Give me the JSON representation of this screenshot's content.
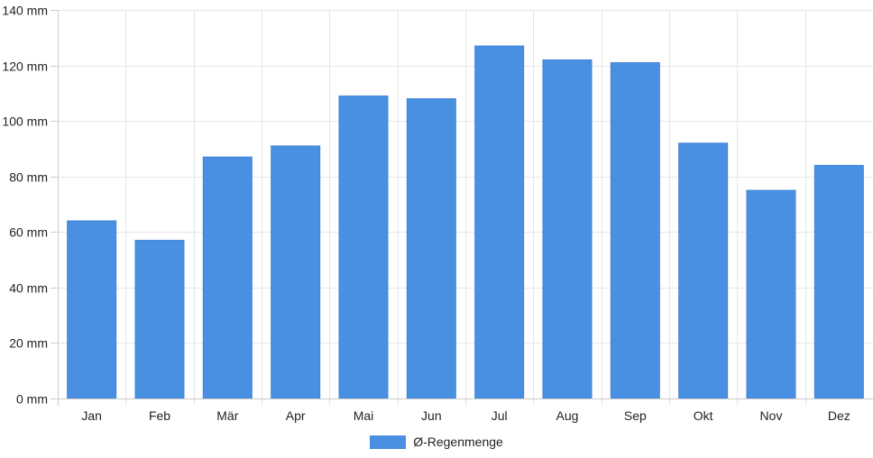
{
  "chart_data": {
    "type": "bar",
    "categories": [
      "Jan",
      "Feb",
      "Mär",
      "Apr",
      "Mai",
      "Jun",
      "Jul",
      "Aug",
      "Sep",
      "Okt",
      "Nov",
      "Dez"
    ],
    "series": [
      {
        "name": "Ø-Regenmenge",
        "values": [
          64,
          57,
          87,
          91,
          109,
          108,
          127,
          122,
          121,
          92,
          75,
          84
        ],
        "color": "#4a90e2"
      }
    ],
    "ylim": [
      0,
      140
    ],
    "yticks": [
      0,
      20,
      40,
      60,
      80,
      100,
      120,
      140
    ],
    "y_unit": "mm",
    "ytick_labels": [
      "0 mm",
      "20 mm",
      "40 mm",
      "60 mm",
      "80 mm",
      "100 mm",
      "120 mm",
      "140 mm"
    ],
    "grid": true,
    "legend_position": "bottom"
  }
}
